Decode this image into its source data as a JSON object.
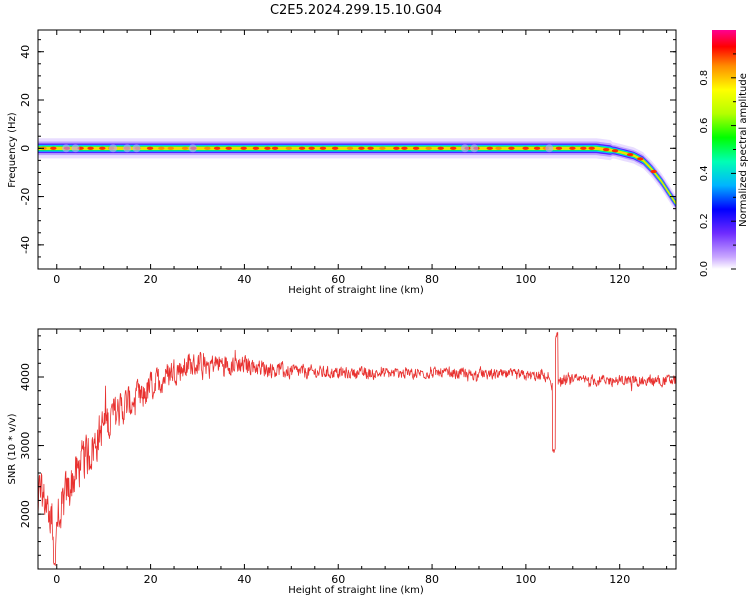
{
  "title": "C2E5.2024.299.15.10.G04",
  "chart_data": [
    {
      "type": "heatmap",
      "xlabel": "Height of straight line (km)",
      "ylabel": "Frequency (Hz)",
      "xlim": [
        -4,
        132
      ],
      "ylim": [
        -50,
        49
      ],
      "xticks": [
        "0",
        "20",
        "40",
        "60",
        "80",
        "100",
        "120"
      ],
      "yticks": [
        "40",
        "20",
        "0",
        "-20",
        "-40"
      ],
      "colorbar": {
        "label": "Normalized spectral amplitude",
        "range": [
          0,
          1
        ],
        "ticks": [
          "0.0",
          "0.2",
          "0.4",
          "0.6",
          "0.8"
        ]
      },
      "ridge": {
        "x": [
          -4,
          0,
          20,
          40,
          60,
          80,
          100,
          115,
          119,
          121,
          123,
          125,
          127,
          129,
          131,
          132
        ],
        "frequency": [
          0,
          0,
          0,
          0,
          0,
          0,
          0,
          0,
          -1,
          -2,
          -3,
          -5,
          -9,
          -14,
          -20,
          -23
        ]
      }
    },
    {
      "type": "line",
      "xlabel": "Height of straight line (km)",
      "ylabel": "SNR (10 * v/v)",
      "xlim": [
        -4,
        132
      ],
      "ylim": [
        1200,
        4700
      ],
      "xticks": [
        "0",
        "20",
        "40",
        "60",
        "80",
        "100",
        "120"
      ],
      "yticks": [
        "2000",
        "3000",
        "4000"
      ],
      "series": [
        {
          "color": "#e8312f",
          "trend": {
            "x": [
              -4,
              -2,
              0,
              2,
              5,
              8,
              10,
              13,
              15,
              18,
              20,
              23,
              25,
              30,
              35,
              40,
              45,
              50,
              60,
              70,
              80,
              90,
              100,
              105,
              106,
              107,
              110,
              120,
              132
            ],
            "y": [
              2400,
              2100,
              1800,
              2300,
              2700,
              3000,
              3300,
              3500,
              3600,
              3700,
              3850,
              4000,
              4100,
              4180,
              4200,
              4180,
              4120,
              4080,
              4060,
              4050,
              4060,
              4040,
              4020,
              4000,
              3800,
              3950,
              3950,
              3950,
              3950
            ]
          },
          "noise_amplitude": {
            "x": [
              -4,
              0,
              10,
              20,
              30,
              45,
              60,
              100,
              132
            ],
            "y": [
              500,
              600,
              550,
              400,
              300,
              220,
              150,
              140,
              150
            ]
          },
          "features": {
            "spike_x": 106.5,
            "spike_max": 4700,
            "dip_x": 106,
            "dip_min": 2850,
            "global_min_x": -0.5,
            "global_min_y": 1250
          }
        }
      ]
    }
  ]
}
